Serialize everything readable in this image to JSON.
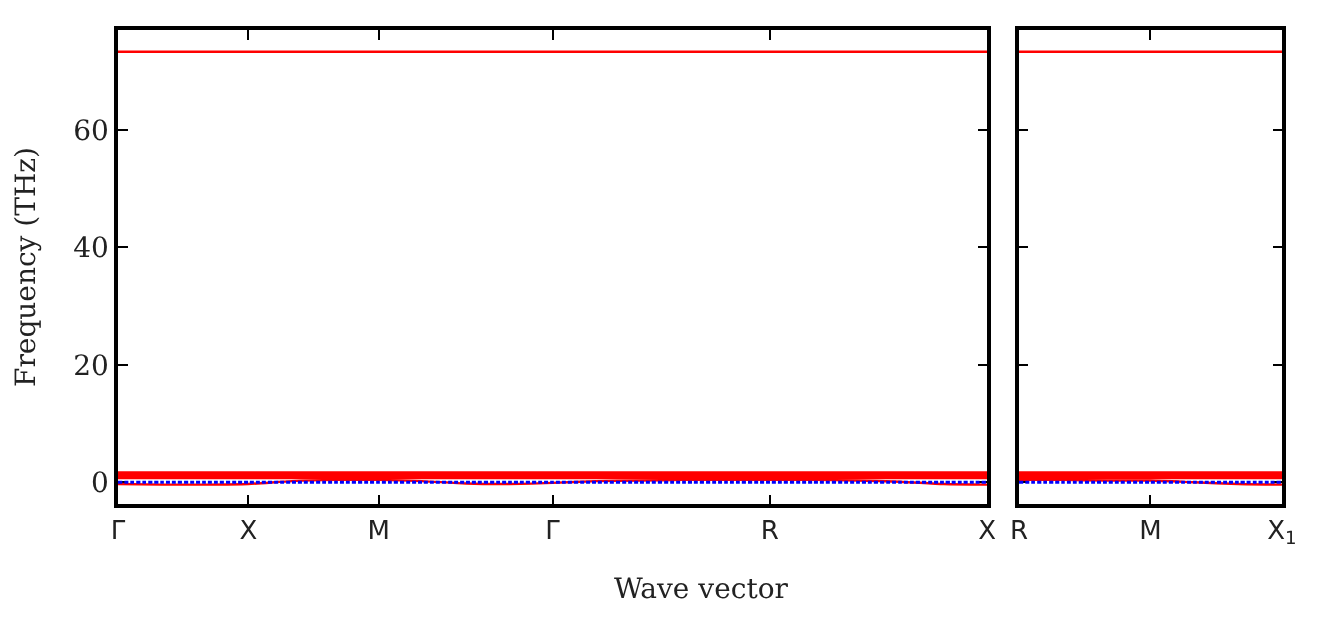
{
  "chart_data": [
    {
      "type": "line",
      "xlabel": "Wave vector",
      "ylabel": "Frequency (THz)",
      "ylim": [
        -3.7,
        77
      ],
      "categories": [
        "Γ",
        null,
        null,
        "X",
        null,
        null,
        "M",
        null,
        null,
        null,
        "Γ",
        null,
        null,
        null,
        null,
        "R",
        null,
        null,
        null,
        null,
        "X"
      ],
      "yticks": [
        0,
        20,
        40,
        60
      ],
      "marker": "none",
      "series": [
        {
          "color": "#ff0000",
          "values": [
            73.3,
            73.3,
            73.3,
            73.3,
            73.3,
            73.3,
            73.3,
            73.3,
            73.3,
            73.3,
            73.3,
            73.3,
            73.3,
            73.3,
            73.3,
            73.3,
            73.3,
            73.3,
            73.3,
            73.3,
            73.3
          ]
        },
        {
          "color": "#ff0000",
          "values": [
            1.2,
            1.2,
            1.2,
            1.2,
            1.2,
            1.2,
            1.2,
            1.2,
            1.2,
            1.2,
            1.2,
            1.2,
            1.2,
            1.2,
            1.2,
            1.2,
            1.2,
            1.2,
            1.2,
            1.2,
            1.2
          ]
        },
        {
          "color": "#ff0000",
          "values": [
            -0.3,
            -0.4,
            -0.4,
            -0.3,
            0.2,
            0.4,
            0.4,
            0.2,
            -0.2,
            -0.3,
            -0.1,
            0.2,
            0.3,
            0.4,
            0.4,
            0.4,
            0.4,
            0.3,
            0.1,
            -0.3,
            -0.4
          ]
        },
        {
          "color": "#0000ff",
          "line_style": "dotted",
          "values": [
            0,
            0,
            0,
            0,
            0,
            0,
            0,
            0,
            0,
            0,
            0,
            0,
            0,
            0,
            0,
            0,
            0,
            0,
            0,
            0,
            0
          ]
        }
      ]
    },
    {
      "type": "line",
      "ylim": [
        -3.7,
        77
      ],
      "tick_labels": "x",
      "categories": [
        "R",
        null,
        null,
        "M",
        null,
        null,
        "X$_{1}$"
      ],
      "yticks": [
        {
          "value": 0,
          "label": null
        },
        {
          "value": 20,
          "label": null
        },
        {
          "value": 40,
          "label": null
        },
        {
          "value": 60,
          "label": null
        }
      ],
      "marker": "none",
      "series": [
        {
          "color": "#ff0000",
          "values": [
            73.3,
            73.3,
            73.3,
            73.3,
            73.3,
            73.3,
            73.3
          ]
        },
        {
          "color": "#ff0000",
          "values": [
            1.2,
            1.2,
            1.2,
            1.2,
            1.2,
            1.2,
            1.2
          ]
        },
        {
          "color": "#ff0000",
          "values": [
            0.4,
            0.4,
            0.3,
            0.3,
            0.0,
            -0.3,
            -0.4
          ]
        },
        {
          "color": "#0000ff",
          "line_style": "dotted",
          "values": [
            0,
            0,
            0,
            0,
            0,
            0,
            0
          ]
        }
      ]
    }
  ]
}
